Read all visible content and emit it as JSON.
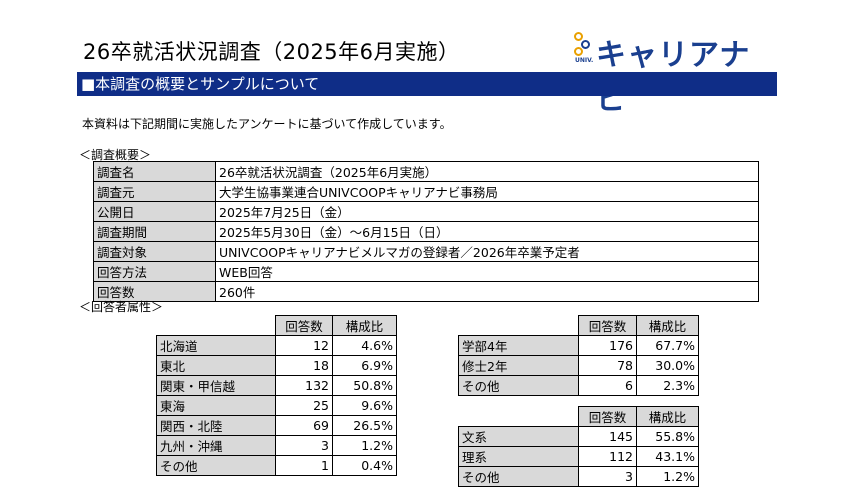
{
  "header": {
    "title": "26卒就活状況調査（2025年6月実施）",
    "logo_text": "キャリアナビ",
    "logo_sub": "UNIV."
  },
  "section_title": "■本調査の概要とサンプルについて",
  "intro": "本資料は下記期間に実施したアンケートに基づいて作成しています。",
  "overview": {
    "caption": "＜調査概要＞",
    "rows": [
      {
        "label": "調査名",
        "value": "26卒就活状況調査（2025年6月実施）"
      },
      {
        "label": "調査元",
        "value": "大学生協事業連合UNIVCOOPキャリアナビ事務局"
      },
      {
        "label": "公開日",
        "value": "2025年7月25日（金）"
      },
      {
        "label": "調査期間",
        "value": "2025年5月30日（金）～6月15日（日）"
      },
      {
        "label": "調査対象",
        "value": "UNIVCOOPキャリアナビメルマガの登録者／2026年卒業予定者"
      },
      {
        "label": "回答方法",
        "value": "WEB回答"
      },
      {
        "label": "回答数",
        "value": "260件"
      }
    ]
  },
  "attributes": {
    "caption": "＜回答者属性＞",
    "col_count": "回答数",
    "col_ratio": "構成比",
    "region": [
      {
        "name": "北海道",
        "count": "12",
        "ratio": "4.6%"
      },
      {
        "name": "東北",
        "count": "18",
        "ratio": "6.9%"
      },
      {
        "name": "関東・甲信越",
        "count": "132",
        "ratio": "50.8%"
      },
      {
        "name": "東海",
        "count": "25",
        "ratio": "9.6%"
      },
      {
        "name": "関西・北陸",
        "count": "69",
        "ratio": "26.5%"
      },
      {
        "name": "九州・沖縄",
        "count": "3",
        "ratio": "1.2%"
      },
      {
        "name": "その他",
        "count": "1",
        "ratio": "0.4%"
      }
    ],
    "grade": [
      {
        "name": "学部4年",
        "count": "176",
        "ratio": "67.7%"
      },
      {
        "name": "修士2年",
        "count": "78",
        "ratio": "30.0%"
      },
      {
        "name": "その他",
        "count": "6",
        "ratio": "2.3%"
      }
    ],
    "major": [
      {
        "name": "文系",
        "count": "145",
        "ratio": "55.8%"
      },
      {
        "name": "理系",
        "count": "112",
        "ratio": "43.1%"
      },
      {
        "name": "その他",
        "count": "3",
        "ratio": "1.2%"
      }
    ]
  }
}
